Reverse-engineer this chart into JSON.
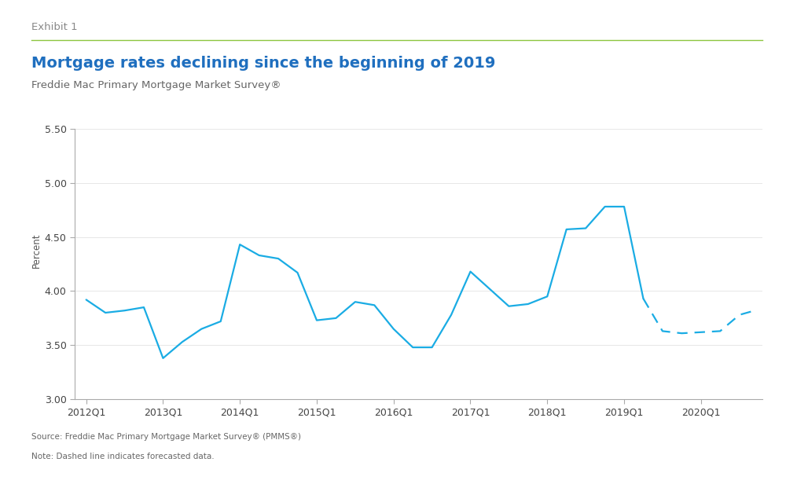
{
  "title": "Mortgage rates declining since the beginning of 2019",
  "subtitle": "Freddie Mac Primary Mortgage Market Survey®",
  "exhibit_label": "Exhibit 1",
  "ylabel": "Percent",
  "source_text": "Source: Freddie Mac Primary Mortgage Market Survey® (PMMS®)",
  "note_text": "Note: Dashed line indicates forecasted data.",
  "line_color": "#1AACE4",
  "ylim": [
    3.0,
    5.75
  ],
  "yticks": [
    3.0,
    3.5,
    4.0,
    4.5,
    5.0,
    5.5
  ],
  "ytick_labels": [
    "3.00",
    "3.50",
    "4.00",
    "4.50",
    "5.00",
    "5.50"
  ],
  "solid_x": [
    2012.0,
    2012.25,
    2012.5,
    2012.75,
    2013.0,
    2013.25,
    2013.5,
    2013.75,
    2014.0,
    2014.25,
    2014.5,
    2014.75,
    2015.0,
    2015.25,
    2015.5,
    2015.75,
    2016.0,
    2016.25,
    2016.5,
    2016.75,
    2017.0,
    2017.25,
    2017.5,
    2017.75,
    2018.0,
    2018.25,
    2018.5,
    2018.75,
    2019.0,
    2019.25
  ],
  "solid_y": [
    3.92,
    3.8,
    3.82,
    3.85,
    3.38,
    3.53,
    3.65,
    3.72,
    4.43,
    4.33,
    4.3,
    4.17,
    3.73,
    3.75,
    3.9,
    3.87,
    3.65,
    3.48,
    3.48,
    3.78,
    4.18,
    4.02,
    3.86,
    3.88,
    3.95,
    4.57,
    4.58,
    4.78,
    4.78,
    3.93
  ],
  "dashed_x": [
    2019.25,
    2019.5,
    2019.75,
    2020.0,
    2020.25,
    2020.5,
    2020.65
  ],
  "dashed_y": [
    3.93,
    3.63,
    3.61,
    3.62,
    3.63,
    3.78,
    3.81
  ],
  "xtick_positions": [
    2012.0,
    2013.0,
    2014.0,
    2015.0,
    2016.0,
    2017.0,
    2018.0,
    2019.0,
    2020.0
  ],
  "xtick_labels": [
    "2012Q1",
    "2013Q1",
    "2014Q1",
    "2015Q1",
    "2016Q1",
    "2017Q1",
    "2018Q1",
    "2019Q1",
    "2020Q1"
  ],
  "xlim": [
    2011.85,
    2020.8
  ],
  "title_color": "#1F6FBF",
  "subtitle_color": "#666666",
  "exhibit_color": "#888888",
  "exhibit_line_color": "#8DC63F",
  "axis_color": "#AAAAAA",
  "tick_color": "#AAAAAA",
  "bg_color": "#FFFFFF",
  "source_note_color": "#666666",
  "title_fontsize": 14,
  "subtitle_fontsize": 9.5,
  "exhibit_fontsize": 9.5,
  "ylabel_fontsize": 8.5,
  "ytick_fontsize": 9,
  "xtick_fontsize": 9,
  "source_fontsize": 7.5,
  "line_width": 1.6
}
